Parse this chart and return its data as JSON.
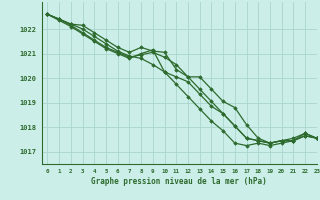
{
  "xlabel": "Graphe pression niveau de la mer (hPa)",
  "ylim": [
    1016.5,
    1023.1
  ],
  "xlim": [
    -0.5,
    23
  ],
  "yticks": [
    1017,
    1018,
    1019,
    1020,
    1021,
    1022
  ],
  "xticks": [
    0,
    1,
    2,
    3,
    4,
    5,
    6,
    7,
    8,
    9,
    10,
    11,
    12,
    13,
    14,
    15,
    16,
    17,
    18,
    19,
    20,
    21,
    22,
    23
  ],
  "bg_color": "#cceee8",
  "grid_color": "#aad4cc",
  "line_color": "#2d6a2d",
  "series": [
    [
      1022.6,
      1022.4,
      1022.2,
      1022.15,
      1021.85,
      1021.55,
      1021.25,
      1021.05,
      1021.25,
      1021.1,
      1021.05,
      1020.35,
      1020.05,
      1020.05,
      1019.55,
      1019.05,
      1018.8,
      1018.1,
      1017.55,
      1017.35,
      1017.45,
      1017.45,
      1017.65,
      1017.55
    ],
    [
      1022.6,
      1022.4,
      1022.2,
      1022.0,
      1021.7,
      1021.4,
      1021.1,
      1020.9,
      1020.8,
      1020.55,
      1020.25,
      1019.75,
      1019.25,
      1018.75,
      1018.25,
      1017.85,
      1017.35,
      1017.25,
      1017.35,
      1017.25,
      1017.35,
      1017.45,
      1017.65,
      1017.55
    ],
    [
      1022.6,
      1022.4,
      1022.15,
      1021.85,
      1021.55,
      1021.25,
      1021.05,
      1020.85,
      1020.95,
      1021.05,
      1020.85,
      1020.55,
      1020.05,
      1019.55,
      1019.05,
      1018.55,
      1018.05,
      1017.55,
      1017.45,
      1017.35,
      1017.45,
      1017.45,
      1017.75,
      1017.55
    ],
    [
      1022.6,
      1022.35,
      1022.1,
      1021.8,
      1021.5,
      1021.2,
      1021.0,
      1020.8,
      1021.0,
      1021.15,
      1020.25,
      1020.05,
      1019.85,
      1019.35,
      1018.85,
      1018.55,
      1018.05,
      1017.55,
      1017.45,
      1017.35,
      1017.45,
      1017.55,
      1017.75,
      1017.55
    ]
  ]
}
